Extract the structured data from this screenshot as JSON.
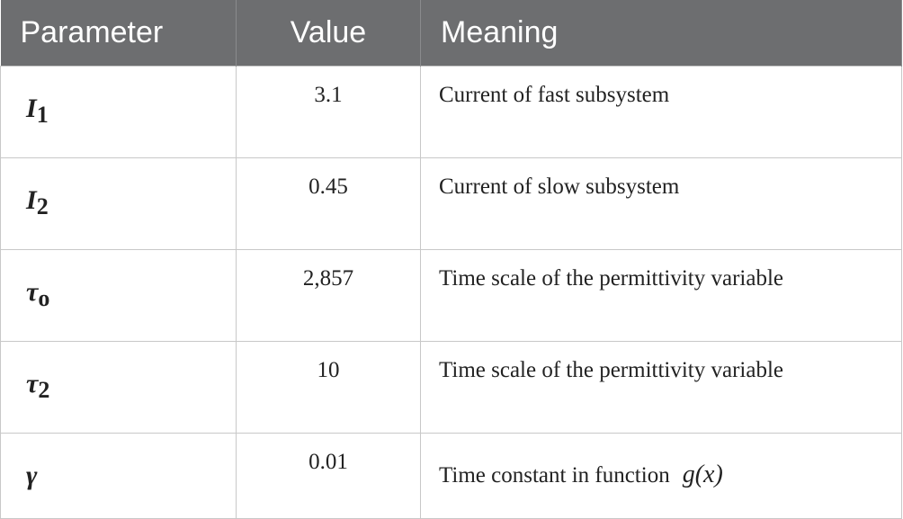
{
  "table": {
    "header": [
      "Parameter",
      "Value",
      "Meaning"
    ],
    "rows": [
      [
        {
          "symbol": "I",
          "sub": "1"
        },
        "3.1",
        {
          "text": "Current of fast subsystem"
        }
      ],
      [
        {
          "symbol": "I",
          "sub": "2"
        },
        "0.45",
        {
          "text": "Current of slow subsystem"
        }
      ],
      [
        {
          "symbol": "τ",
          "sub": "o"
        },
        "2,857",
        {
          "text": "Time scale of the permittivity variable"
        }
      ],
      [
        {
          "symbol": "τ",
          "sub": "2"
        },
        "10",
        {
          "text": "Time scale of the permittivity variable"
        }
      ],
      [
        {
          "symbol": "γ"
        },
        "0.01",
        {
          "text": "Time constant in function",
          "formula": "g(x)"
        }
      ]
    ]
  }
}
